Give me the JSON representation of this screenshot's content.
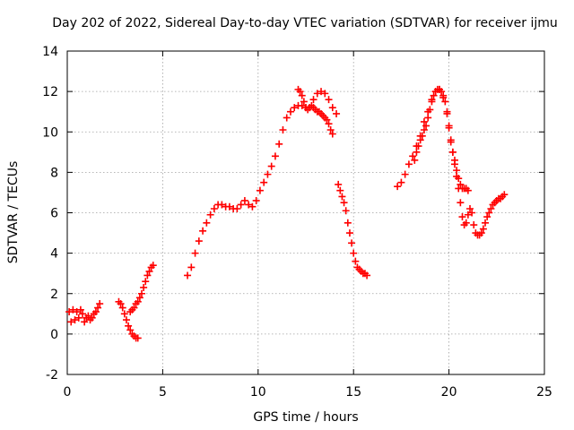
{
  "chart_data": {
    "type": "scatter",
    "title": "Day 202 of 2022, Sidereal Day-to-day VTEC variation (SDTVAR) for receiver ijmu",
    "xlabel": "GPS time / hours",
    "ylabel": "SDTVAR / TECUs",
    "xlim": [
      0,
      25
    ],
    "ylim": [
      -2,
      14
    ],
    "xticks": [
      0,
      5,
      10,
      15,
      20,
      25
    ],
    "yticks": [
      -2,
      0,
      2,
      4,
      6,
      8,
      10,
      12,
      14
    ],
    "grid": true,
    "marker": "plus",
    "series_color": "#ff0000",
    "series": [
      {
        "x": [
          0.1,
          0.2,
          0.3,
          0.4,
          0.5,
          0.6,
          0.7,
          0.8,
          0.9,
          1.0,
          1.1,
          1.2,
          1.3,
          1.4,
          1.5,
          1.6,
          1.7
        ],
        "y": [
          1.1,
          0.6,
          1.2,
          0.7,
          1.1,
          0.8,
          1.2,
          1.0,
          0.6,
          0.8,
          0.9,
          0.7,
          0.8,
          1.0,
          1.1,
          1.3,
          1.5
        ]
      },
      {
        "x": [
          2.7,
          2.8,
          2.9,
          3.0,
          3.1,
          3.2,
          3.3,
          3.4,
          3.5,
          3.6,
          3.7
        ],
        "y": [
          1.6,
          1.5,
          1.3,
          1.0,
          0.7,
          0.4,
          0.2,
          0.0,
          -0.1,
          -0.2,
          -0.2
        ]
      },
      {
        "x": [
          3.3,
          3.4,
          3.5,
          3.6,
          3.7,
          3.8,
          3.9,
          4.0,
          4.1,
          4.2,
          4.3,
          4.4,
          4.5
        ],
        "y": [
          1.1,
          1.2,
          1.3,
          1.5,
          1.6,
          1.8,
          2.0,
          2.3,
          2.6,
          2.9,
          3.1,
          3.3,
          3.4
        ]
      },
      {
        "x": [
          6.3,
          6.5,
          6.7,
          6.9,
          7.1,
          7.3,
          7.5,
          7.7,
          7.9,
          8.1,
          8.3,
          8.5,
          8.7,
          8.9,
          9.1,
          9.3,
          9.5,
          9.7,
          9.9,
          10.1,
          10.3,
          10.5,
          10.7,
          10.9,
          11.1,
          11.3,
          11.5,
          11.7,
          11.9,
          12.1,
          12.3,
          12.5,
          12.7,
          12.9,
          13.1,
          13.3,
          13.5,
          13.7,
          13.9,
          14.1
        ],
        "y": [
          2.9,
          3.3,
          4.0,
          4.6,
          5.1,
          5.5,
          5.9,
          6.2,
          6.4,
          6.4,
          6.3,
          6.3,
          6.2,
          6.2,
          6.4,
          6.6,
          6.4,
          6.3,
          6.6,
          7.1,
          7.5,
          7.9,
          8.3,
          8.8,
          9.4,
          10.1,
          10.7,
          11.0,
          11.2,
          11.3,
          11.3,
          11.2,
          11.2,
          11.6,
          11.9,
          12.0,
          11.9,
          11.6,
          11.2,
          10.9
        ]
      },
      {
        "x": [
          12.1,
          12.2,
          12.3,
          12.4,
          12.5,
          12.6,
          12.7,
          12.8,
          12.9,
          13.0,
          13.1,
          13.2,
          13.3,
          13.4,
          13.5,
          13.6,
          13.7,
          13.8,
          13.9
        ],
        "y": [
          12.1,
          12.0,
          11.8,
          11.5,
          11.2,
          11.1,
          11.2,
          11.3,
          11.2,
          11.1,
          11.0,
          11.0,
          10.9,
          10.8,
          10.7,
          10.6,
          10.4,
          10.1,
          9.9
        ]
      },
      {
        "x": [
          14.2,
          14.3,
          14.4,
          14.5,
          14.6,
          14.7,
          14.8,
          14.9,
          15.0,
          15.1,
          15.2,
          15.3,
          15.4,
          15.5,
          15.6,
          15.7
        ],
        "y": [
          7.4,
          7.1,
          6.8,
          6.5,
          6.1,
          5.5,
          5.0,
          4.5,
          4.0,
          3.6,
          3.3,
          3.2,
          3.1,
          3.0,
          3.0,
          2.9
        ]
      },
      {
        "x": [
          17.3,
          17.5,
          17.7,
          17.9,
          18.1,
          18.3,
          18.5,
          18.7,
          18.9,
          19.1,
          19.3,
          19.5,
          19.7,
          19.9,
          20.0,
          20.1,
          20.2,
          20.3,
          20.4,
          20.5,
          20.6,
          20.7,
          20.8,
          20.9,
          21.0
        ],
        "y": [
          7.3,
          7.5,
          7.9,
          8.4,
          8.8,
          9.3,
          9.8,
          10.5,
          11.0,
          11.6,
          12.0,
          12.1,
          11.7,
          11.0,
          10.3,
          9.5,
          9.0,
          8.6,
          8.1,
          7.7,
          7.4,
          7.2,
          7.2,
          7.2,
          7.1
        ]
      },
      {
        "x": [
          18.2,
          18.3,
          18.4,
          18.5,
          18.6,
          18.7,
          18.8,
          18.9,
          19.0,
          19.1,
          19.2,
          19.3,
          19.4,
          19.5,
          19.6,
          19.7,
          19.8,
          19.9,
          20.0,
          20.1,
          20.2,
          20.3,
          20.4,
          20.5,
          20.6,
          20.7,
          20.8,
          20.9,
          21.0,
          21.1,
          21.2,
          21.3,
          21.4,
          21.5,
          21.6,
          21.7,
          21.8,
          21.9,
          22.0,
          22.1,
          22.2,
          22.3,
          22.4,
          22.5,
          22.6,
          22.7,
          22.8,
          22.9
        ],
        "y": [
          8.6,
          9.0,
          9.3,
          9.6,
          9.8,
          10.1,
          10.3,
          10.7,
          11.1,
          11.5,
          11.8,
          12.0,
          12.1,
          12.1,
          12.0,
          11.8,
          11.5,
          10.9,
          10.2,
          9.6,
          9.0,
          8.4,
          7.8,
          7.2,
          6.5,
          5.8,
          5.4,
          5.5,
          5.9,
          6.2,
          6.0,
          5.4,
          5.0,
          4.9,
          4.9,
          5.0,
          5.2,
          5.5,
          5.8,
          6.0,
          6.2,
          6.4,
          6.5,
          6.6,
          6.7,
          6.7,
          6.8,
          6.9
        ]
      }
    ]
  }
}
